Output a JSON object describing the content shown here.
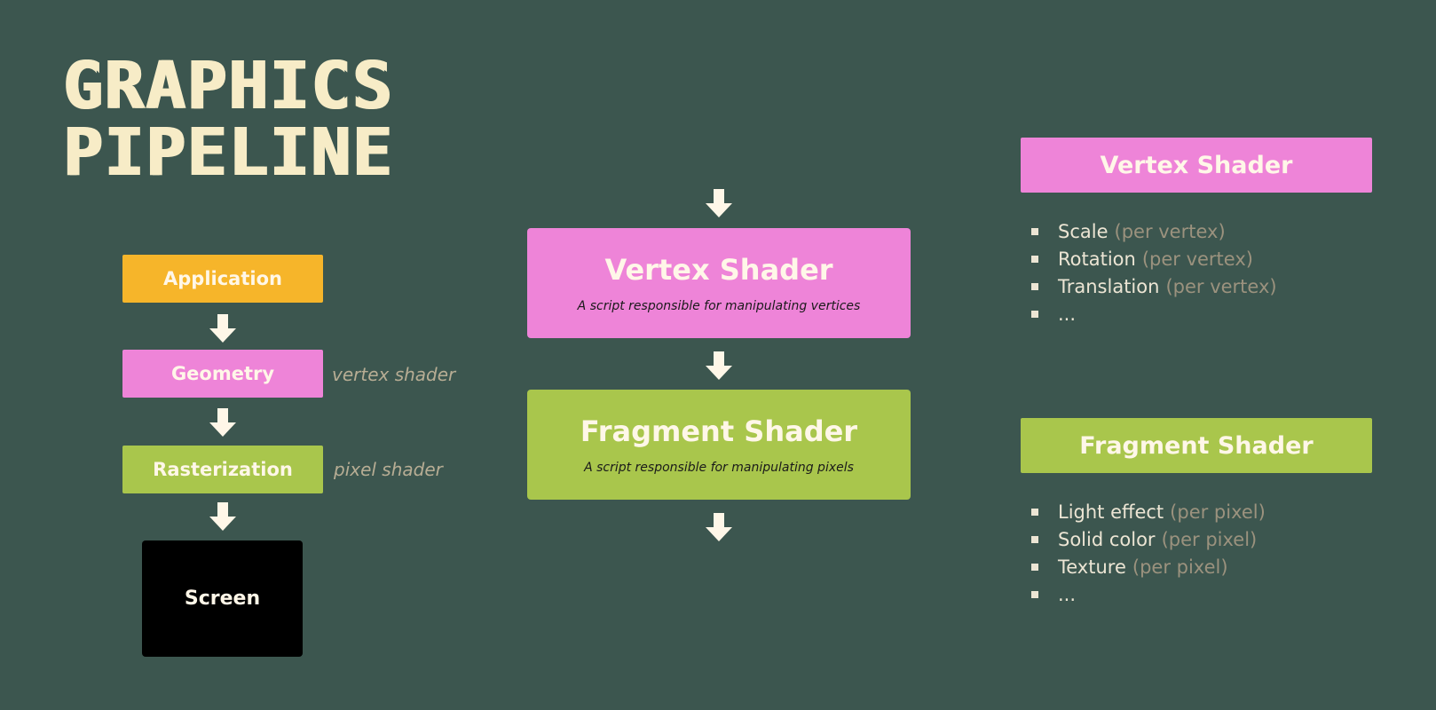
{
  "title": {
    "line1": "GRAPHICS",
    "line2": "PIPELINE"
  },
  "left_pipeline": {
    "application": "Application",
    "geometry": "Geometry",
    "geometry_note": "vertex shader",
    "rasterization": "Rasterization",
    "rasterization_note": "pixel shader",
    "screen": "Screen"
  },
  "center": {
    "vertex": {
      "title": "Vertex Shader",
      "subtitle": "A script responsible for manipulating vertices"
    },
    "fragment": {
      "title": "Fragment Shader",
      "subtitle": "A script responsible for manipulating pixels"
    }
  },
  "right": {
    "vertex_panel": {
      "title": "Vertex Shader",
      "items": [
        {
          "label": "Scale",
          "note": "(per vertex)"
        },
        {
          "label": "Rotation",
          "note": "(per vertex)"
        },
        {
          "label": "Translation",
          "note": "(per vertex)"
        },
        {
          "label": "...",
          "note": ""
        }
      ]
    },
    "fragment_panel": {
      "title": "Fragment Shader",
      "items": [
        {
          "label": "Light effect",
          "note": "(per pixel)"
        },
        {
          "label": "Solid color",
          "note": "(per pixel)"
        },
        {
          "label": "Texture",
          "note": "(per pixel)"
        },
        {
          "label": "...",
          "note": ""
        }
      ]
    }
  },
  "colors": {
    "background": "#3c564f",
    "application": "#f6b52a",
    "shader_pink": "#ee84d8",
    "shader_green": "#a9c64c",
    "screen": "#000000",
    "arrow": "#fff7e8"
  }
}
